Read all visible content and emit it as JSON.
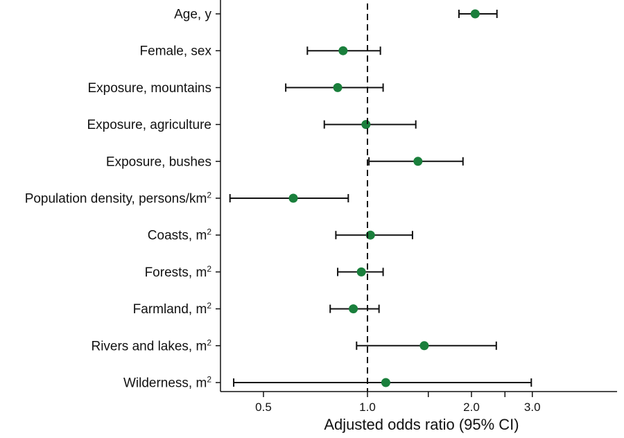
{
  "chart_data": {
    "type": "forest",
    "xlabel": "Adjusted odds ratio (95% CI)",
    "x_scale": "log",
    "xlim": [
      0.35,
      5.0
    ],
    "reference_line": 1.0,
    "x_ticks": [
      {
        "value": 0.5,
        "label": "0.5"
      },
      {
        "value": 1.0,
        "label": "1.0"
      },
      {
        "value": 1.5,
        "label": ""
      },
      {
        "value": 2.0,
        "label": "2.0"
      },
      {
        "value": 2.5,
        "label": ""
      },
      {
        "value": 3.0,
        "label": "3.0"
      }
    ],
    "point_color": "#1a7f3c",
    "rows": [
      {
        "label": "Age, y",
        "sup": "",
        "estimate": 2.05,
        "lower": 1.84,
        "upper": 2.37
      },
      {
        "label": "Female, sex",
        "sup": "",
        "estimate": 0.85,
        "lower": 0.67,
        "upper": 1.09
      },
      {
        "label": "Exposure, mountains",
        "sup": "",
        "estimate": 0.82,
        "lower": 0.58,
        "upper": 1.11
      },
      {
        "label": "Exposure, agriculture",
        "sup": "",
        "estimate": 0.99,
        "lower": 0.75,
        "upper": 1.38
      },
      {
        "label": "Exposure, bushes",
        "sup": "",
        "estimate": 1.4,
        "lower": 1.01,
        "upper": 1.89
      },
      {
        "label": "Population density, persons/km",
        "sup": "2",
        "estimate": 0.61,
        "lower": 0.4,
        "upper": 0.88
      },
      {
        "label": "Coasts, m",
        "sup": "2",
        "estimate": 1.02,
        "lower": 0.81,
        "upper": 1.35
      },
      {
        "label": "Forests, m",
        "sup": "2",
        "estimate": 0.96,
        "lower": 0.82,
        "upper": 1.11
      },
      {
        "label": "Farmland, m",
        "sup": "2",
        "estimate": 0.91,
        "lower": 0.78,
        "upper": 1.08
      },
      {
        "label": "Rivers and lakes, m",
        "sup": "2",
        "estimate": 1.46,
        "lower": 0.93,
        "upper": 2.36
      },
      {
        "label": "Wilderness, m",
        "sup": "2",
        "estimate": 1.13,
        "lower": 0.41,
        "upper": 2.98
      }
    ]
  }
}
